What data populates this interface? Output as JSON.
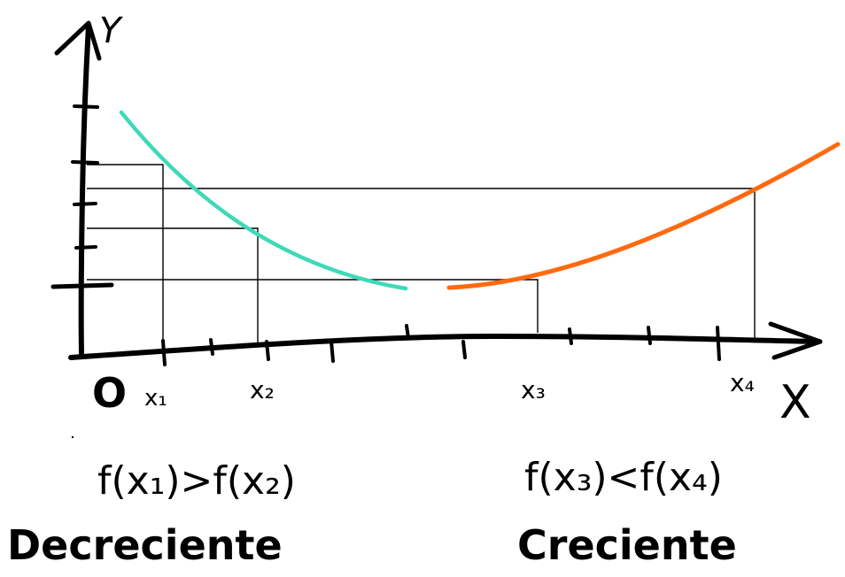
{
  "axes": {
    "y_label": "Y",
    "x_label": "X",
    "origin_label": "O"
  },
  "x_ticks": [
    "x₁",
    "x₂",
    "x₃",
    "x₄"
  ],
  "curves": {
    "decreasing_color": "#3fd9b8",
    "increasing_color": "#ff6a10"
  },
  "captions": {
    "left_inequality": "f(x₁)>f(x₂)",
    "left_word": "Decreciente",
    "right_inequality": "f(x₃)<f(x₄)",
    "right_word": "Creciente"
  }
}
